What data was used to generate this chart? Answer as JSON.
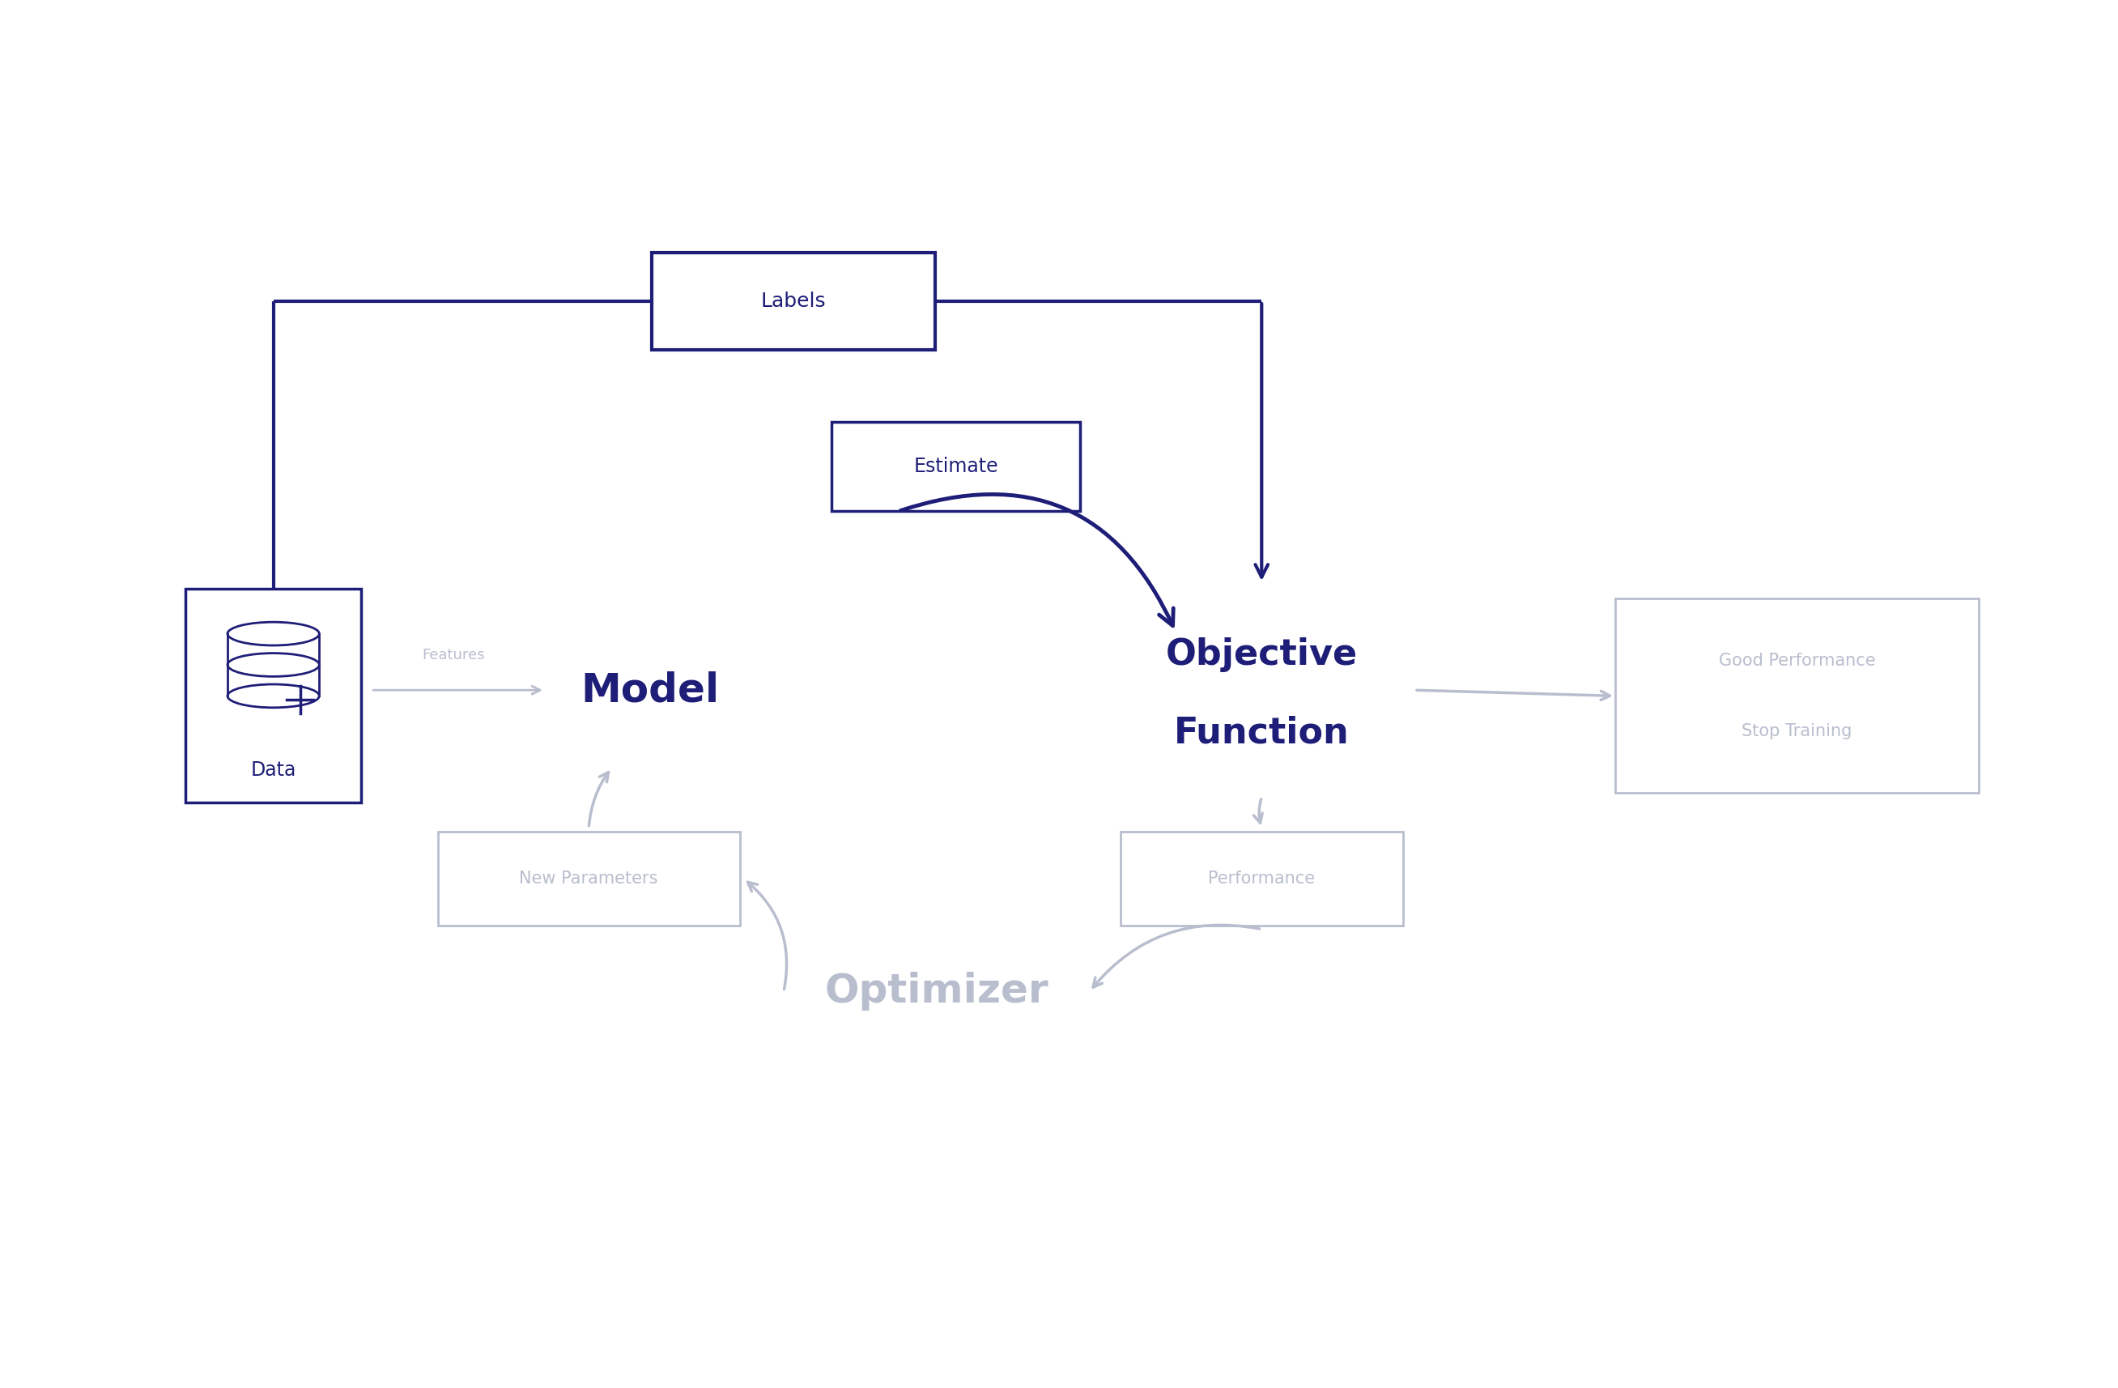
{
  "bg_color": "#ffffff",
  "dark_color": "#1e1e78",
  "gray_color": "#b8bece",
  "gray_text": "#b8bece",
  "labels_text": "Labels",
  "estimate_text": "Estimate",
  "data_text": "Data",
  "new_params_text": "New Parameters",
  "performance_text": "Performance",
  "good_perf_line1": "Good Performance",
  "good_perf_line2": "Stop Training",
  "model_text": "Model",
  "obj_func_line1": "Objective",
  "obj_func_line2": "Function",
  "optimizer_text": "Optimizer",
  "features_text": "Features"
}
